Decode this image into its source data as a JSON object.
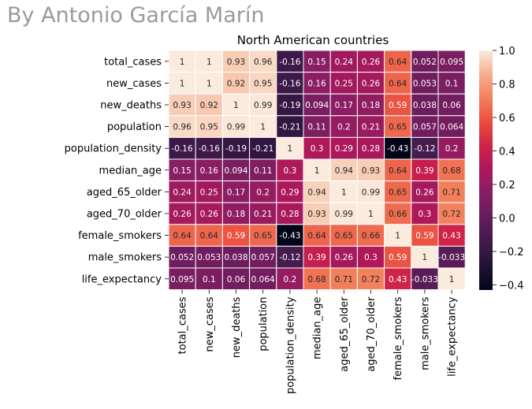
{
  "watermark": "By Antonio García Marín",
  "chart_data": {
    "type": "heatmap",
    "title": "North American countries",
    "xlabel": "",
    "ylabel": "",
    "labels": [
      "total_cases",
      "new_cases",
      "new_deaths",
      "population",
      "population_density",
      "median_age",
      "aged_65_older",
      "aged_70_older",
      "female_smokers",
      "male_smokers",
      "life_expectancy"
    ],
    "matrix": [
      [
        1,
        1,
        0.93,
        0.96,
        -0.16,
        0.15,
        0.24,
        0.26,
        0.64,
        0.052,
        0.095
      ],
      [
        1,
        1,
        0.92,
        0.95,
        -0.16,
        0.16,
        0.25,
        0.26,
        0.64,
        0.053,
        0.1
      ],
      [
        0.93,
        0.92,
        1,
        0.99,
        -0.19,
        0.094,
        0.17,
        0.18,
        0.59,
        0.038,
        0.06
      ],
      [
        0.96,
        0.95,
        0.99,
        1,
        -0.21,
        0.11,
        0.2,
        0.21,
        0.65,
        0.057,
        0.064
      ],
      [
        -0.16,
        -0.16,
        -0.19,
        -0.21,
        1,
        0.3,
        0.29,
        0.28,
        -0.43,
        -0.12,
        0.2
      ],
      [
        0.15,
        0.16,
        0.094,
        0.11,
        0.3,
        1,
        0.94,
        0.93,
        0.64,
        0.39,
        0.68
      ],
      [
        0.24,
        0.25,
        0.17,
        0.2,
        0.29,
        0.94,
        1,
        0.99,
        0.65,
        0.26,
        0.71
      ],
      [
        0.26,
        0.26,
        0.18,
        0.21,
        0.28,
        0.93,
        0.99,
        1,
        0.66,
        0.3,
        0.72
      ],
      [
        0.64,
        0.64,
        0.59,
        0.65,
        -0.43,
        0.64,
        0.65,
        0.66,
        1,
        0.59,
        0.43
      ],
      [
        0.052,
        0.053,
        0.038,
        0.057,
        -0.12,
        0.39,
        0.26,
        0.3,
        0.59,
        1,
        -0.033
      ],
      [
        0.095,
        0.1,
        0.06,
        0.064,
        0.2,
        0.68,
        0.71,
        0.72,
        0.43,
        -0.033,
        1
      ]
    ],
    "vmin": -0.43,
    "vmax": 1,
    "colormap": "rocket",
    "colorbar_ticks": [
      "1.0",
      "0.8",
      "0.6",
      "0.4",
      "0.2",
      "0.0",
      "−0.2",
      "−0.4"
    ],
    "colorbar_tick_values": [
      1,
      0.8,
      0.6,
      0.4,
      0.2,
      0,
      -0.2,
      -0.4
    ],
    "annotations": true,
    "grid": false,
    "legend": "colorbar-right"
  }
}
